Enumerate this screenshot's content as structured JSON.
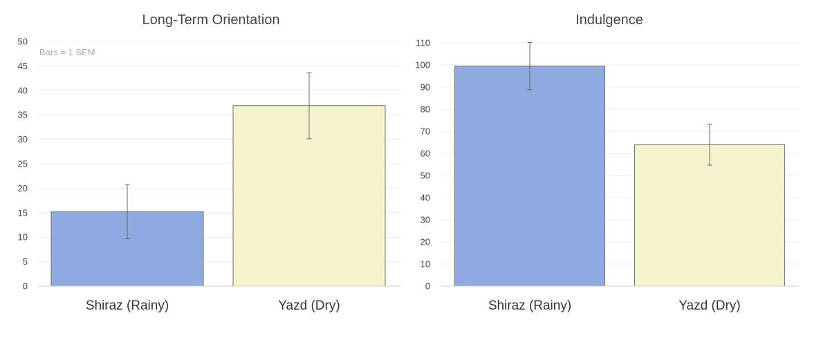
{
  "chart_data": [
    {
      "type": "bar",
      "title": "Long-Term Orientation",
      "note": "Bars = 1 SEM",
      "categories": [
        "Shiraz (Rainy)",
        "Yazd (Dry)"
      ],
      "values": [
        15.2,
        36.9
      ],
      "error_low": [
        9.7,
        30.1
      ],
      "error_high": [
        20.7,
        43.6
      ],
      "ylim": [
        0,
        50
      ],
      "yticks": [
        0,
        5,
        10,
        15,
        20,
        25,
        30,
        35,
        40,
        45,
        50
      ],
      "colors": [
        "#8eaadf",
        "#f5f3cb"
      ],
      "grid": true
    },
    {
      "type": "bar",
      "title": "Indulgence",
      "categories": [
        "Shiraz (Rainy)",
        "Yazd (Dry)"
      ],
      "values": [
        99.5,
        64
      ],
      "error_low": [
        88.8,
        54.7
      ],
      "error_high": [
        110.2,
        73.2
      ],
      "ylim": [
        0,
        110
      ],
      "yticks": [
        0,
        10,
        20,
        30,
        40,
        50,
        60,
        70,
        80,
        90,
        100,
        110
      ],
      "colors": [
        "#8eaadf",
        "#f5f3cb"
      ],
      "grid": true
    }
  ]
}
